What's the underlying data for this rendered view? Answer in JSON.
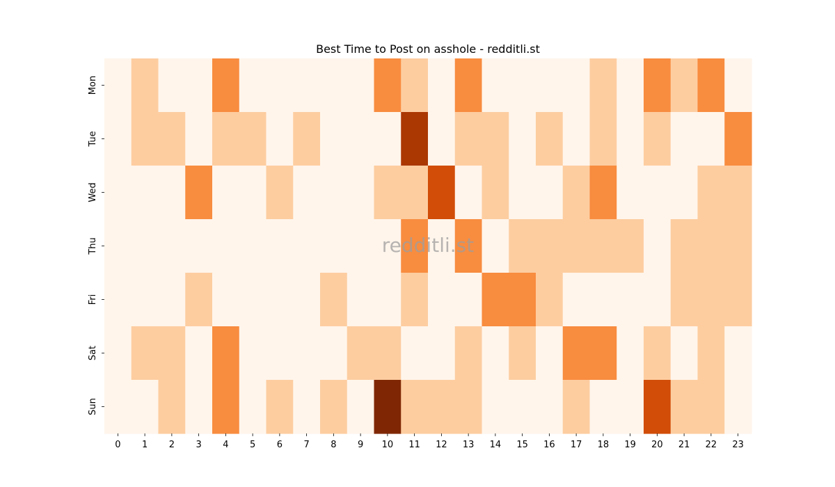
{
  "chart_data": {
    "type": "heatmap",
    "title": "Best Time to Post on asshole - redditli.st",
    "watermark": "redditli.st",
    "x_categories": [
      "0",
      "1",
      "2",
      "3",
      "4",
      "5",
      "6",
      "7",
      "8",
      "9",
      "10",
      "11",
      "12",
      "13",
      "14",
      "15",
      "16",
      "17",
      "18",
      "19",
      "20",
      "21",
      "22",
      "23"
    ],
    "y_categories": [
      "Mon",
      "Tue",
      "Wed",
      "Thu",
      "Fri",
      "Sat",
      "Sun"
    ],
    "xlabel": "",
    "ylabel": "",
    "value_range": [
      0,
      4
    ],
    "colormap": [
      "#fff5eb",
      "#fdd9b4",
      "#fda762",
      "#f3701b",
      "#c54102",
      "#7f2704"
    ],
    "values": [
      [
        0,
        1,
        0,
        0,
        2,
        0,
        0,
        0,
        0,
        0,
        2,
        1,
        0,
        2,
        0,
        0,
        0,
        0,
        1,
        0,
        2,
        1,
        2,
        0
      ],
      [
        0,
        1,
        1,
        0,
        1,
        1,
        0,
        1,
        0,
        0,
        0,
        3.5,
        0,
        1,
        1,
        0,
        1,
        0,
        1,
        0,
        1,
        0,
        0,
        2
      ],
      [
        0,
        0,
        0,
        2,
        0,
        0,
        1,
        0,
        0,
        0,
        1,
        1,
        3,
        0,
        1,
        0,
        0,
        1,
        2,
        0,
        0,
        0,
        1,
        1
      ],
      [
        0,
        0,
        0,
        0,
        0,
        0,
        0,
        0,
        0,
        0,
        0,
        2,
        0,
        2,
        0,
        1,
        1,
        1,
        1,
        1,
        0,
        1,
        1,
        1
      ],
      [
        0,
        0,
        0,
        1,
        0,
        0,
        0,
        0,
        1,
        0,
        0,
        1,
        0,
        0,
        2,
        2,
        1,
        0,
        0,
        0,
        0,
        1,
        1,
        1
      ],
      [
        0,
        1,
        1,
        0,
        2,
        0,
        0,
        0,
        0,
        1,
        1,
        0,
        0,
        1,
        0,
        1,
        0,
        2,
        2,
        0,
        1,
        0,
        1,
        0
      ],
      [
        0,
        0,
        1,
        0,
        2,
        0,
        1,
        0,
        1,
        0,
        4,
        1,
        1,
        1,
        0,
        0,
        0,
        1,
        0,
        0,
        3,
        1,
        1,
        0
      ]
    ]
  }
}
